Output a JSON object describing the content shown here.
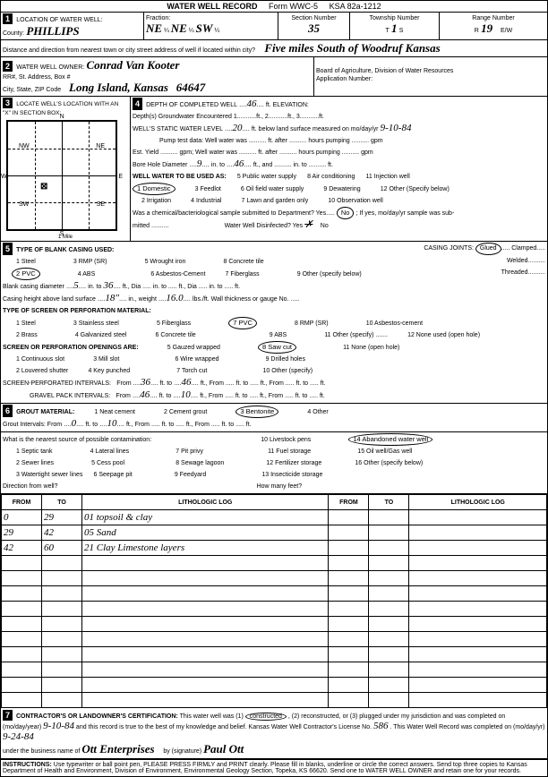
{
  "form": {
    "title": "WATER WELL RECORD",
    "form_no": "Form WWC-5",
    "ksa": "KSA 82a-1212"
  },
  "section1": {
    "heading": "LOCATION OF WATER WELL:",
    "county_label": "County:",
    "county": "PHILLIPS",
    "fraction_label": "Fraction:",
    "frac1": "NE",
    "frac2": "NE",
    "frac3": "SW",
    "sec_label": "Section Number",
    "sec": "35",
    "twp_label": "Township Number",
    "twp_t": "T",
    "twp": "1",
    "twp_s": "S",
    "range_label": "Range Number",
    "range_r": "R",
    "range": "19",
    "range_ew": "E/W",
    "distance_label": "Distance and direction from nearest town or city street address of well if located within city?",
    "distance": "Five miles South of Woodruf Kansas"
  },
  "section2": {
    "heading": "WATER WELL OWNER:",
    "owner": "Conrad Van Kooter",
    "rr_label": "RR#, St. Address, Box #",
    "city_label": "City, State, ZIP Code",
    "city": "Long Island, Kansas",
    "zip": "64647",
    "board_label": "Board of Agriculture, Division of Water Resources",
    "app_label": "Application Number:"
  },
  "section3": {
    "heading": "LOCATE WELL'S LOCATION WITH AN \"X\" IN SECTION BOX:",
    "grid": {
      "nw": "NW",
      "ne": "NE",
      "sw": "SW",
      "se": "SE",
      "n": "N",
      "s": "S",
      "e": "E",
      "w": "W",
      "mile": "1 Mile"
    }
  },
  "section4": {
    "heading": "DEPTH OF COMPLETED WELL",
    "depth": "46",
    "depth_unit": "ft. ELEVATION:",
    "gw_line": "Depth(s) Groundwater Encountered   1...........ft., 2...........ft., 3...........ft.",
    "static_label": "WELL'S STATIC WATER LEVEL",
    "static": "20",
    "static_after": "ft. below land surface measured on mo/day/yr",
    "static_date": "9-10-84",
    "pump_line": "Pump test data: Well water was .......... ft. after .......... hours pumping .......... gpm",
    "estyield_line": "Est. Yield .......... gpm; Well water was .......... ft. after .......... hours pumping .......... gpm",
    "bore_label": "Bore Hole Diameter",
    "bore1": "9",
    "bore_mid": "in. to",
    "bore2": "46",
    "bore_after": "ft., and .......... in. to .......... ft.",
    "use_heading": "WELL WATER TO BE USED AS:",
    "uses": {
      "u1": "1 Domestic",
      "u2": "2 Irrigation",
      "u3": "3 Feedlot",
      "u4": "4 Industrial",
      "u5": "5 Public water supply",
      "u6": "6 Oil field water supply",
      "u7": "7 Lawn and garden only",
      "u8": "8 Air conditioning",
      "u9": "9 Dewatering",
      "u10": "10 Observation well",
      "u11": "11 Injection well",
      "u12": "12 Other (Specify below)"
    },
    "bact_label": "Was a chemical/bacteriological sample submitted to Department?  Yes.....",
    "bact_no": "No",
    "bact_after": "; If yes, mo/day/yr sample was sub-",
    "mitted": "mitted ..........",
    "disinf": "Water Well Disinfected?  Yes",
    "disinf_no": "No"
  },
  "section5": {
    "heading": "TYPE OF BLANK CASING USED:",
    "joints_label": "CASING JOINTS:",
    "joints": {
      "glued": "Glued",
      "welded": "Welded",
      "clamped": "Clamped",
      "threaded": "Threaded"
    },
    "c_opts": {
      "c1": "1 Steel",
      "c2": "2 PVC",
      "c3": "3 RMP (SR)",
      "c4": "4 ABS",
      "c5": "5 Wrought iron",
      "c6": "6 Asbestos-Cement",
      "c7": "7 Fiberglass",
      "c8": "8 Concrete tile",
      "c9": "9 Other (specify below)"
    },
    "diam_label": "Blank casing diameter",
    "diam": "5",
    "diam_mid": "in. to",
    "diam_to": "36",
    "diam_after": "ft., Dia ..... in. to ..... ft., Dia ..... in. to ..... ft.",
    "height_label": "Casing height above land surface",
    "height": "18\"",
    "weight_label": "in., weight",
    "weight": "16.0",
    "weight_after": "lbs./ft. Wall thickness or gauge No. .....",
    "screen_heading": "TYPE OF SCREEN OR PERFORATION MATERIAL:",
    "s_opts": {
      "s1": "1 Steel",
      "s2": "2 Brass",
      "s3": "3 Stainless steel",
      "s4": "4 Galvanized steel",
      "s5": "5 Fiberglass",
      "s6": "6 Concrete tile",
      "s7": "7 PVC",
      "s8": "8 RMP (SR)",
      "s9": "9 ABS",
      "s10": "10 Asbestos-cement",
      "s11": "11 Other (specify) .......",
      "s12": "12 None used (open hole)"
    },
    "open_heading": "SCREEN OR PERFORATION OPENINGS ARE:",
    "o_opts": {
      "o1": "1 Continuous slot",
      "o2": "2 Louvered shutter",
      "o3": "3 Mill slot",
      "o4": "4 Key punched",
      "o5": "5 Gauzed wrapped",
      "o6": "6 Wire wrapped",
      "o7": "7 Torch cut",
      "o8": "8 Saw cut",
      "o9": "9 Drilled holes",
      "o10": "10 Other (specify)",
      "o11": "11 None (open hole)"
    },
    "perf_label": "SCREEN-PERFORATED INTERVALS:",
    "perf_from": "From",
    "perf_v1": "36",
    "perf_to": "ft. to",
    "perf_v2": "46",
    "perf_after": "ft., From ..... ft. to ..... ft., From ..... ft. to ..... ft.",
    "gravel_label": "GRAVEL PACK INTERVALS:",
    "gravel_v1": "46",
    "gravel_v2": "10",
    "gravel_after": "ft., From ..... ft. to ..... ft., From ..... ft. to ..... ft."
  },
  "section6": {
    "heading": "GROUT MATERIAL:",
    "opts": {
      "g1": "1 Neat cement",
      "g2": "2 Cement grout",
      "g3": "3 Bentonite",
      "g4": "4 Other"
    },
    "intervals_label": "Grout Intervals:   From",
    "gi1": "0",
    "gi_to": "ft. to",
    "gi2": "10",
    "gi_after": "ft., From ..... ft. to ..... ft., From ..... ft. to ..... ft.",
    "contam_heading": "What is the nearest source of possible contamination:",
    "c_opts": {
      "c1": "1 Septic tank",
      "c2": "2 Sewer lines",
      "c3": "3 Watertight sewer lines",
      "c4": "4 Lateral lines",
      "c5": "5 Cess pool",
      "c6": "6 Seepage pit",
      "c7": "7 Pit privy",
      "c8": "8 Sewage lagoon",
      "c9": "9 Feedyard",
      "c10": "10 Livestock pens",
      "c11": "11 Fuel storage",
      "c12": "12 Fertilizer storage",
      "c13": "13 Insecticide storage",
      "c14": "14 Abandoned water well",
      "c15": "15 Oil well/Gas well",
      "c16": "16 Other (specify below)"
    },
    "dir_label": "Direction from well?",
    "feet_label": "How many feet?"
  },
  "log": {
    "h_from": "FROM",
    "h_to": "TO",
    "h_desc": "LITHOLOGIC LOG",
    "rows": [
      {
        "from": "0",
        "to": "29",
        "desc": "01 topsoil & clay"
      },
      {
        "from": "29",
        "to": "42",
        "desc": "05 Sand"
      },
      {
        "from": "42",
        "to": "60",
        "desc": "21 Clay Limestone layers"
      }
    ]
  },
  "section7": {
    "heading": "CONTRACTOR'S OR LANDOWNER'S CERTIFICATION:",
    "text1": "This water well was (1)",
    "constructed": "constructed",
    "text2": ", (2) reconstructed, or (3) plugged under my jurisdiction and was",
    "completed_label": "completed on (mo/day/year)",
    "completed": "9-10-84",
    "text3": "and this record is true to the best of my knowledge and belief. Kansas",
    "lic_label": "Water Well Contractor's License No.",
    "lic": "586",
    "text4": ". This Water Well Record was completed on (mo/day/yr)",
    "rec_date": "9-24-84",
    "bus_label": "under the business name of",
    "bus": "Ott Enterprises",
    "sig_label": "by (signature)",
    "sig": "Paul Ott"
  },
  "instructions": {
    "heading": "INSTRUCTIONS:",
    "text": "Use typewriter or ball point pen, PLEASE PRESS FIRMLY and PRINT clearly. Please fill in blanks, underline or circle the correct answers. Send top three copies to Kansas Department of Health and Environment, Division of Environment, Environmental Geology Section, Topeka, KS 66620. Send one to WATER WELL OWNER and retain one for your records."
  }
}
